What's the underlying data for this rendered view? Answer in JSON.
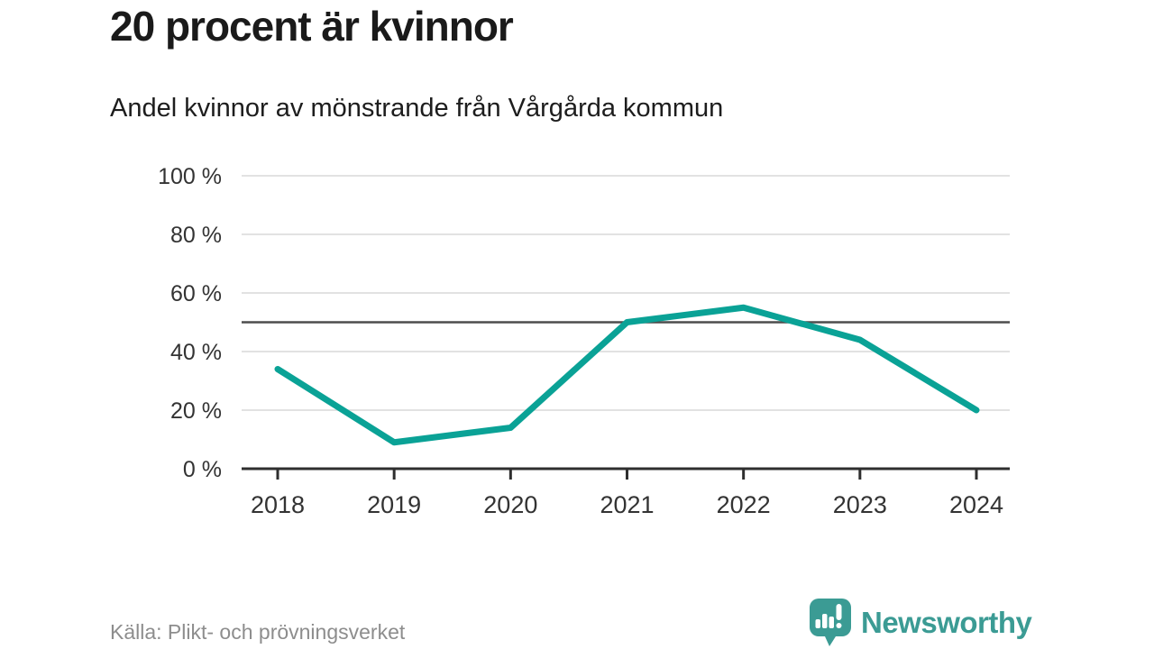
{
  "header": {
    "title": "20 procent är kvinnor",
    "subtitle": "Andel kvinnor av mönstrande från Vårgårda kommun"
  },
  "chart_data": {
    "type": "line",
    "x": [
      2018,
      2019,
      2020,
      2021,
      2022,
      2023,
      2024
    ],
    "series": [
      {
        "name": "Andel kvinnor av mönstrande",
        "values": [
          34,
          9,
          14,
          50,
          55,
          44,
          20
        ]
      }
    ],
    "title": "20 procent är kvinnor",
    "xlabel": "",
    "ylabel": "",
    "ylim": [
      0,
      100
    ],
    "y_ticks": [
      0,
      20,
      40,
      60,
      80,
      100
    ],
    "y_tick_labels": [
      "0 %",
      "20 %",
      "40 %",
      "60 %",
      "80 %",
      "100 %"
    ],
    "reference_line": 50,
    "grid": true,
    "legend": "none"
  },
  "footer": {
    "source": "Källa: Plikt- och prövningsverket",
    "brand": "Newsworthy"
  },
  "icons": {
    "logo": "newsworthy-speech-bubble-chart-icon"
  },
  "colors": {
    "line": "#0aa296",
    "grid": "#d9d9d9",
    "reference_line": "#4d4d4d",
    "axis": "#2e2e2e",
    "axis_text": "#333333",
    "title_text": "#1a1a1a",
    "source_text": "#8d8d8d",
    "brand_teal": "#3b9b94"
  }
}
